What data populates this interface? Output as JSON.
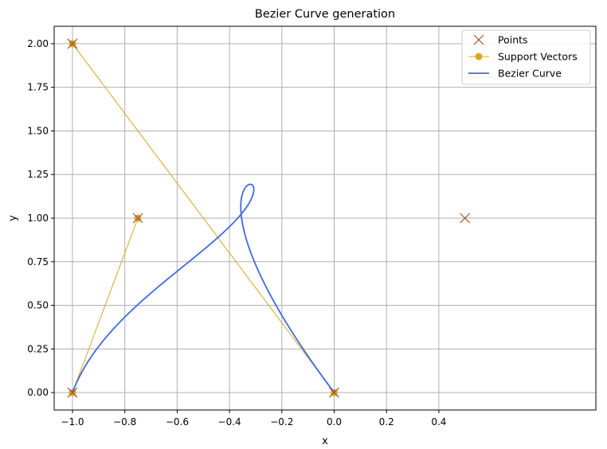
{
  "chart_data": {
    "type": "line",
    "title": "Bezier Curve generation",
    "xlabel": "x",
    "ylabel": "y",
    "xlim": [
      -1.07,
      1.0
    ],
    "ylim": [
      -0.1,
      2.1
    ],
    "x_ticks": [
      -1.0,
      -0.8,
      -0.6,
      -0.4,
      -0.2,
      0.0,
      0.2,
      0.4
    ],
    "x_tick_labels": [
      "−1.0",
      "−0.8",
      "−0.6",
      "−0.4",
      "−0.2",
      "0.0",
      "0.2",
      "0.4"
    ],
    "y_ticks": [
      0.0,
      0.25,
      0.5,
      0.75,
      1.0,
      1.25,
      1.5,
      1.75,
      2.0
    ],
    "y_tick_labels": [
      "0.00",
      "0.25",
      "0.50",
      "0.75",
      "1.00",
      "1.25",
      "1.50",
      "1.75",
      "2.00"
    ],
    "grid": true,
    "legend_position": "top-right",
    "series": [
      {
        "name": "Points",
        "kind": "markers",
        "marker": "x",
        "color": "#a0522d",
        "points": [
          [
            -1.0,
            0.0
          ],
          [
            -0.75,
            1.0
          ],
          [
            -1.0,
            2.0
          ],
          [
            0.0,
            0.0
          ],
          [
            0.5,
            1.0
          ]
        ]
      },
      {
        "name": "Support Vectors",
        "kind": "line-markers",
        "marker": "o",
        "color": "#daa520",
        "segments": [
          [
            [
              -1.0,
              0.0
            ],
            [
              -0.75,
              1.0
            ]
          ],
          [
            [
              -1.0,
              2.0
            ],
            [
              0.0,
              0.0
            ]
          ]
        ]
      },
      {
        "name": "Bezier Curve",
        "kind": "line",
        "color": "#4169e1",
        "control_points": [
          [
            -1.0,
            0.0
          ],
          [
            -0.75,
            1.0
          ],
          [
            0.5,
            1.0
          ],
          [
            -1.0,
            2.0
          ],
          [
            0.0,
            0.0
          ]
        ]
      }
    ]
  }
}
